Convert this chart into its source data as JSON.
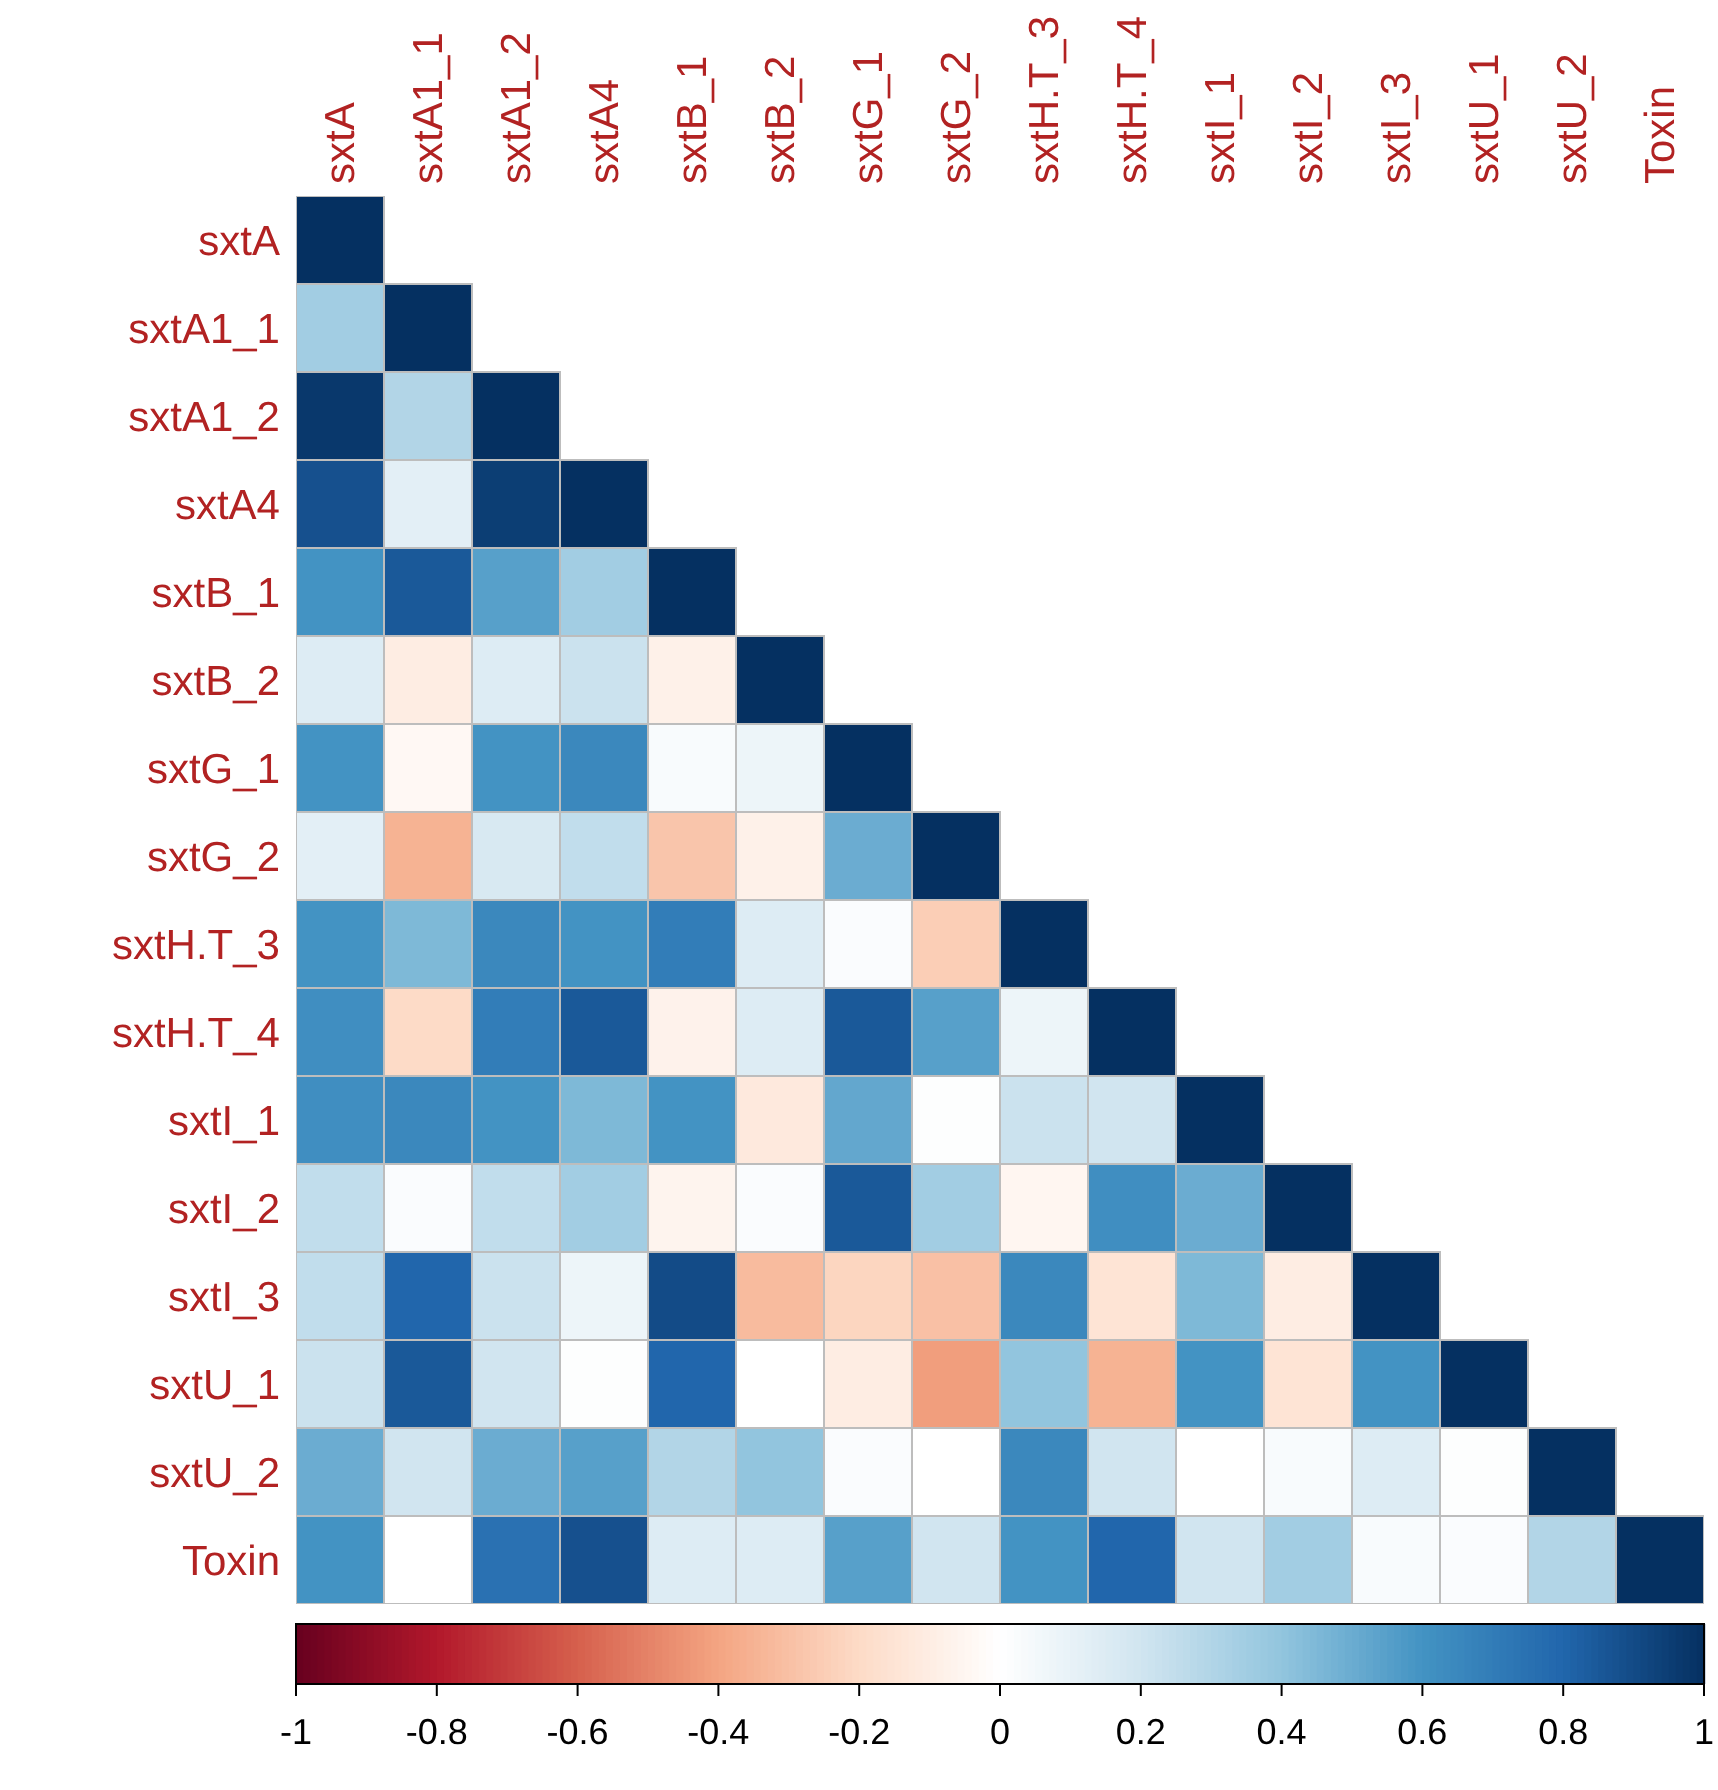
{
  "chart_data": {
    "type": "heatmap",
    "categories": [
      "sxtA",
      "sxtA1_1",
      "sxtA1_2",
      "sxtA4",
      "sxtB_1",
      "sxtB_2",
      "sxtG_1",
      "sxtG_2",
      "sxtH.T_3",
      "sxtH.T_4",
      "sxtI_1",
      "sxtI_2",
      "sxtI_3",
      "sxtU_1",
      "sxtU_2",
      "Toxin"
    ],
    "y_categories": [
      "sxtA",
      "sxtA1_1",
      "sxtA1_2",
      "sxtA4",
      "sxtB_1",
      "sxtB_2",
      "sxtG_1",
      "sxtG_2",
      "sxtH.T_3",
      "sxtH.T_4",
      "sxtI_1",
      "sxtI_2",
      "sxtI_3",
      "sxtU_1",
      "sxtU_2",
      "Toxin"
    ],
    "cells": [
      [
        1,
        null,
        null,
        null,
        null,
        null,
        null,
        null,
        null,
        null,
        null,
        null,
        null,
        null,
        null,
        null
      ],
      [
        0.35,
        1,
        null,
        null,
        null,
        null,
        null,
        null,
        null,
        null,
        null,
        null,
        null,
        null,
        null,
        null
      ],
      [
        0.97,
        0.3,
        1,
        null,
        null,
        null,
        null,
        null,
        null,
        null,
        null,
        null,
        null,
        null,
        null,
        null
      ],
      [
        0.88,
        0.12,
        0.95,
        1,
        null,
        null,
        null,
        null,
        null,
        null,
        null,
        null,
        null,
        null,
        null,
        null
      ],
      [
        0.6,
        0.85,
        0.55,
        0.35,
        1,
        null,
        null,
        null,
        null,
        null,
        null,
        null,
        null,
        null,
        null,
        null
      ],
      [
        0.15,
        -0.1,
        0.15,
        0.22,
        -0.08,
        1,
        null,
        null,
        null,
        null,
        null,
        null,
        null,
        null,
        null,
        null
      ],
      [
        0.6,
        -0.04,
        0.6,
        0.65,
        0.03,
        0.08,
        1,
        null,
        null,
        null,
        null,
        null,
        null,
        null,
        null,
        null
      ],
      [
        0.12,
        -0.35,
        0.17,
        0.25,
        -0.28,
        -0.08,
        0.5,
        1,
        null,
        null,
        null,
        null,
        null,
        null,
        null,
        null
      ],
      [
        0.6,
        0.45,
        0.65,
        0.6,
        0.7,
        0.15,
        0.02,
        -0.25,
        1,
        null,
        null,
        null,
        null,
        null,
        null,
        null
      ],
      [
        0.62,
        -0.2,
        0.7,
        0.85,
        -0.07,
        0.15,
        0.85,
        0.55,
        0.08,
        1,
        null,
        null,
        null,
        null,
        null,
        null
      ],
      [
        0.62,
        0.65,
        0.6,
        0.45,
        0.6,
        -0.12,
        0.52,
        0.01,
        0.22,
        0.2,
        1,
        null,
        null,
        null,
        null,
        null
      ],
      [
        0.25,
        0.02,
        0.25,
        0.35,
        -0.06,
        0.02,
        0.85,
        0.35,
        -0.05,
        0.62,
        0.5,
        1,
        null,
        null,
        null,
        null
      ],
      [
        0.25,
        0.8,
        0.22,
        0.08,
        0.9,
        -0.32,
        -0.22,
        -0.3,
        0.65,
        -0.15,
        0.45,
        -0.1,
        1,
        null,
        null,
        null
      ],
      [
        0.22,
        0.85,
        0.2,
        0.01,
        0.8,
        0,
        -0.1,
        -0.42,
        0.4,
        -0.35,
        0.6,
        -0.15,
        0.6,
        1,
        null,
        null
      ],
      [
        0.5,
        0.2,
        0.5,
        0.55,
        0.3,
        0.4,
        0.02,
        0,
        0.65,
        0.2,
        0,
        0.03,
        0.15,
        0.01,
        1,
        null
      ],
      [
        0.6,
        0,
        0.75,
        0.88,
        0.15,
        0.15,
        0.55,
        0.2,
        0.6,
        0.8,
        0.2,
        0.35,
        0.03,
        0.02,
        0.3,
        1
      ]
    ],
    "clim": [
      -1,
      1
    ],
    "cticks": [
      -1,
      -0.8,
      -0.6,
      -0.4,
      -0.2,
      0,
      0.2,
      0.4,
      0.6,
      0.8,
      1
    ]
  }
}
